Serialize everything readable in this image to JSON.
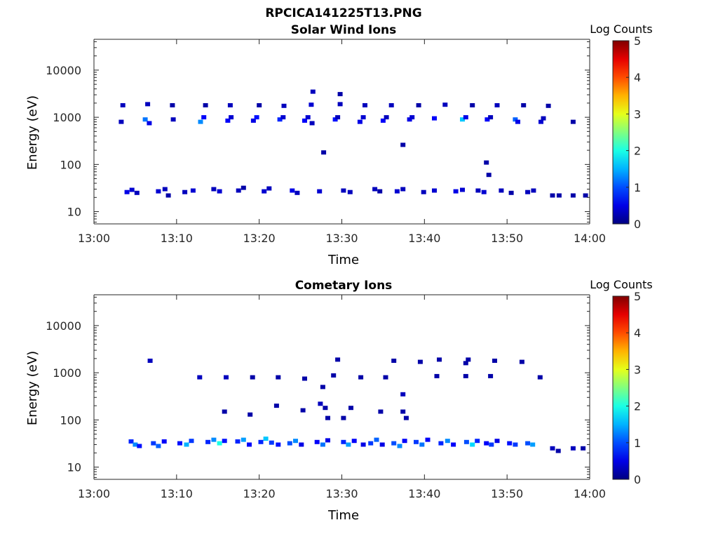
{
  "figure_title": "RPCICA141225T13.PNG",
  "colors": {
    "background": "#ffffff",
    "axis": "#262626"
  },
  "chart_data": [
    {
      "type": "heatmap",
      "title": "Solar Wind Ions",
      "xlabel": "Time",
      "ylabel": "Energy (eV)",
      "x_ticks": [
        "13:00",
        "13:10",
        "13:20",
        "13:30",
        "13:40",
        "13:50",
        "14:00"
      ],
      "y_ticks": [
        "10",
        "100",
        "1000",
        "10000"
      ],
      "y_scale": "log",
      "xlim_minutes": [
        0,
        60
      ],
      "ylim": [
        5.5,
        45000
      ],
      "grid": false,
      "colorbar": {
        "label": "Log Counts",
        "ticks": [
          "0",
          "1",
          "2",
          "3",
          "4",
          "5"
        ],
        "range": [
          0,
          5
        ],
        "colormap": "jet"
      },
      "series": [
        {
          "band": "high",
          "points": [
            [
              3.5,
              1800,
              0.3
            ],
            [
              6.5,
              1900,
              0.3
            ],
            [
              9.5,
              1800,
              0.2
            ],
            [
              13.5,
              1800,
              0.2
            ],
            [
              16.5,
              1800,
              0.3
            ],
            [
              20.0,
              1800,
              0.2
            ],
            [
              23.0,
              1750,
              0.3
            ],
            [
              26.3,
              1850,
              0.4
            ],
            [
              26.5,
              3500,
              0.3
            ],
            [
              29.8,
              1900,
              0.3
            ],
            [
              29.8,
              3100,
              0.2
            ],
            [
              32.8,
              1800,
              0.3
            ],
            [
              36.0,
              1800,
              0.3
            ],
            [
              39.3,
              1800,
              0.2
            ],
            [
              42.5,
              1850,
              0.3
            ],
            [
              45.8,
              1800,
              0.2
            ],
            [
              48.8,
              1800,
              0.3
            ],
            [
              52.0,
              1800,
              0.2
            ],
            [
              55.0,
              1750,
              0.2
            ]
          ]
        },
        {
          "band": "mid",
          "points": [
            [
              3.3,
              800,
              0.3
            ],
            [
              6.2,
              900,
              1.2
            ],
            [
              6.7,
              750,
              0.5
            ],
            [
              9.6,
              900,
              0.3
            ],
            [
              12.9,
              800,
              1.3
            ],
            [
              13.3,
              1000,
              0.6
            ],
            [
              16.2,
              850,
              0.6
            ],
            [
              16.6,
              1000,
              0.4
            ],
            [
              19.3,
              850,
              0.5
            ],
            [
              19.7,
              1000,
              0.7
            ],
            [
              22.5,
              900,
              0.8
            ],
            [
              22.9,
              1000,
              0.4
            ],
            [
              25.5,
              850,
              0.6
            ],
            [
              25.9,
              1000,
              0.4
            ],
            [
              26.4,
              750,
              0.3
            ],
            [
              29.2,
              900,
              0.7
            ],
            [
              29.5,
              1000,
              0.3
            ],
            [
              32.2,
              800,
              0.5
            ],
            [
              32.6,
              1000,
              0.4
            ],
            [
              35.0,
              850,
              0.6
            ],
            [
              35.4,
              1000,
              0.3
            ],
            [
              38.2,
              900,
              0.5
            ],
            [
              38.5,
              1000,
              0.4
            ],
            [
              41.2,
              950,
              0.6
            ],
            [
              44.6,
              900,
              1.6
            ],
            [
              45.0,
              1000,
              0.5
            ],
            [
              47.6,
              900,
              0.6
            ],
            [
              48.0,
              1000,
              0.3
            ],
            [
              51.0,
              900,
              1.1
            ],
            [
              51.3,
              800,
              0.5
            ],
            [
              54.1,
              800,
              0.4
            ],
            [
              54.4,
              950,
              0.3
            ],
            [
              58.0,
              800,
              0.2
            ]
          ]
        },
        {
          "band": "sparse",
          "points": [
            [
              27.8,
              180,
              0.2
            ],
            [
              37.4,
              260,
              0.2
            ],
            [
              47.5,
              110,
              0.2
            ],
            [
              47.8,
              60,
              0.2
            ]
          ]
        },
        {
          "band": "low",
          "points": [
            [
              4.0,
              26,
              0.5
            ],
            [
              4.6,
              29,
              0.4
            ],
            [
              5.2,
              25,
              0.3
            ],
            [
              7.8,
              27,
              0.4
            ],
            [
              8.6,
              30,
              0.3
            ],
            [
              9.0,
              22,
              0.2
            ],
            [
              11.0,
              26,
              0.3
            ],
            [
              12.0,
              28,
              0.4
            ],
            [
              14.5,
              30,
              0.3
            ],
            [
              15.2,
              27,
              0.4
            ],
            [
              17.5,
              28,
              0.3
            ],
            [
              18.1,
              32,
              0.2
            ],
            [
              20.6,
              27,
              0.4
            ],
            [
              21.2,
              31,
              0.3
            ],
            [
              24.0,
              28,
              0.5
            ],
            [
              24.6,
              25,
              0.3
            ],
            [
              27.3,
              27,
              0.4
            ],
            [
              30.2,
              28,
              0.3
            ],
            [
              31.0,
              26,
              0.3
            ],
            [
              34.0,
              30,
              0.3
            ],
            [
              34.6,
              27,
              0.2
            ],
            [
              36.7,
              27,
              0.4
            ],
            [
              37.4,
              30,
              0.3
            ],
            [
              39.9,
              26,
              0.3
            ],
            [
              41.2,
              28,
              0.4
            ],
            [
              43.8,
              27,
              0.5
            ],
            [
              44.6,
              29,
              0.4
            ],
            [
              46.5,
              28,
              0.3
            ],
            [
              47.2,
              26,
              0.4
            ],
            [
              49.3,
              28,
              0.3
            ],
            [
              50.5,
              25,
              0.2
            ],
            [
              52.5,
              26,
              0.3
            ],
            [
              53.2,
              28,
              0.3
            ],
            [
              55.5,
              22,
              0.2
            ],
            [
              56.3,
              22,
              0.2
            ],
            [
              58.0,
              22,
              0.2
            ],
            [
              59.5,
              22,
              0.2
            ]
          ]
        }
      ]
    },
    {
      "type": "heatmap",
      "title": "Cometary Ions",
      "xlabel": "Time",
      "ylabel": "Energy (eV)",
      "x_ticks": [
        "13:00",
        "13:10",
        "13:20",
        "13:30",
        "13:40",
        "13:50",
        "14:00"
      ],
      "y_ticks": [
        "10",
        "100",
        "1000",
        "10000"
      ],
      "y_scale": "log",
      "xlim_minutes": [
        0,
        60
      ],
      "ylim": [
        5.5,
        45000
      ],
      "grid": false,
      "colorbar": {
        "label": "Log Counts",
        "ticks": [
          "0",
          "1",
          "2",
          "3",
          "4",
          "5"
        ],
        "range": [
          0,
          5
        ],
        "colormap": "jet"
      },
      "series": [
        {
          "band": "high",
          "points": [
            [
              6.8,
              1800,
              0.3
            ],
            [
              12.8,
              800,
              0.3
            ],
            [
              16.0,
              800,
              0.3
            ],
            [
              19.2,
              800,
              0.2
            ],
            [
              22.3,
              800,
              0.2
            ],
            [
              25.5,
              750,
              0.2
            ],
            [
              29.5,
              1900,
              0.2
            ],
            [
              32.3,
              800,
              0.2
            ],
            [
              35.3,
              800,
              0.2
            ],
            [
              36.3,
              1800,
              0.2
            ],
            [
              39.5,
              1700,
              0.2
            ],
            [
              41.8,
              1900,
              0.2
            ],
            [
              41.5,
              850,
              0.2
            ],
            [
              45.3,
              1900,
              0.2
            ],
            [
              45.0,
              850,
              0.2
            ],
            [
              48.0,
              850,
              0.2
            ],
            [
              51.8,
              1700,
              0.2
            ],
            [
              54.0,
              800,
              0.2
            ],
            [
              45.0,
              1600,
              0.2
            ],
            [
              48.5,
              1800,
              0.2
            ]
          ]
        },
        {
          "band": "sparse",
          "points": [
            [
              27.7,
              500,
              0.2
            ],
            [
              27.4,
              220,
              0.3
            ],
            [
              28.0,
              180,
              0.2
            ],
            [
              28.3,
              110,
              0.2
            ],
            [
              30.2,
              110,
              0.2
            ],
            [
              31.1,
              180,
              0.2
            ],
            [
              34.7,
              150,
              0.2
            ],
            [
              37.4,
              350,
              0.3
            ],
            [
              37.4,
              150,
              0.2
            ],
            [
              37.8,
              110,
              0.2
            ],
            [
              18.9,
              130,
              0.2
            ],
            [
              15.8,
              150,
              0.2
            ],
            [
              22.1,
              200,
              0.2
            ],
            [
              25.3,
              160,
              0.2
            ],
            [
              29.0,
              880,
              0.2
            ]
          ]
        },
        {
          "band": "low",
          "points": [
            [
              4.5,
              35,
              0.8
            ],
            [
              5.0,
              30,
              1.3
            ],
            [
              5.5,
              28,
              0.7
            ],
            [
              7.2,
              32,
              0.9
            ],
            [
              7.8,
              28,
              1.1
            ],
            [
              8.5,
              35,
              0.6
            ],
            [
              10.4,
              32,
              0.7
            ],
            [
              11.2,
              30,
              1.5
            ],
            [
              11.8,
              36,
              0.9
            ],
            [
              13.8,
              34,
              0.8
            ],
            [
              14.5,
              38,
              1.3
            ],
            [
              15.2,
              32,
              2.0
            ],
            [
              15.8,
              36,
              0.7
            ],
            [
              17.4,
              35,
              0.8
            ],
            [
              18.1,
              38,
              1.4
            ],
            [
              18.8,
              30,
              0.6
            ],
            [
              20.2,
              34,
              0.8
            ],
            [
              20.8,
              40,
              1.6
            ],
            [
              21.5,
              33,
              0.9
            ],
            [
              22.3,
              30,
              0.7
            ],
            [
              23.7,
              32,
              1.0
            ],
            [
              24.4,
              36,
              1.3
            ],
            [
              25.1,
              30,
              0.5
            ],
            [
              27.0,
              34,
              0.6
            ],
            [
              27.7,
              30,
              1.2
            ],
            [
              28.3,
              37,
              0.5
            ],
            [
              30.2,
              34,
              0.8
            ],
            [
              30.8,
              30,
              1.4
            ],
            [
              31.5,
              36,
              0.6
            ],
            [
              32.6,
              30,
              0.5
            ],
            [
              33.5,
              32,
              0.9
            ],
            [
              34.2,
              38,
              1.1
            ],
            [
              34.9,
              30,
              0.5
            ],
            [
              36.3,
              32,
              1.0
            ],
            [
              37.0,
              28,
              1.3
            ],
            [
              37.6,
              36,
              0.6
            ],
            [
              39.0,
              34,
              0.9
            ],
            [
              39.7,
              30,
              1.2
            ],
            [
              40.4,
              38,
              0.6
            ],
            [
              42.0,
              32,
              0.8
            ],
            [
              42.8,
              36,
              1.3
            ],
            [
              43.5,
              30,
              0.6
            ],
            [
              45.1,
              34,
              1.0
            ],
            [
              45.8,
              30,
              1.7
            ],
            [
              46.4,
              36,
              0.8
            ],
            [
              47.5,
              32,
              0.6
            ],
            [
              48.1,
              30,
              0.9
            ],
            [
              48.8,
              36,
              0.5
            ],
            [
              50.3,
              32,
              0.7
            ],
            [
              51.0,
              30,
              0.9
            ],
            [
              52.5,
              32,
              1.0
            ],
            [
              53.1,
              30,
              1.4
            ],
            [
              55.5,
              25,
              0.3
            ],
            [
              56.2,
              22,
              0.2
            ],
            [
              58.0,
              25,
              0.3
            ],
            [
              59.2,
              25,
              0.2
            ]
          ]
        }
      ]
    }
  ]
}
